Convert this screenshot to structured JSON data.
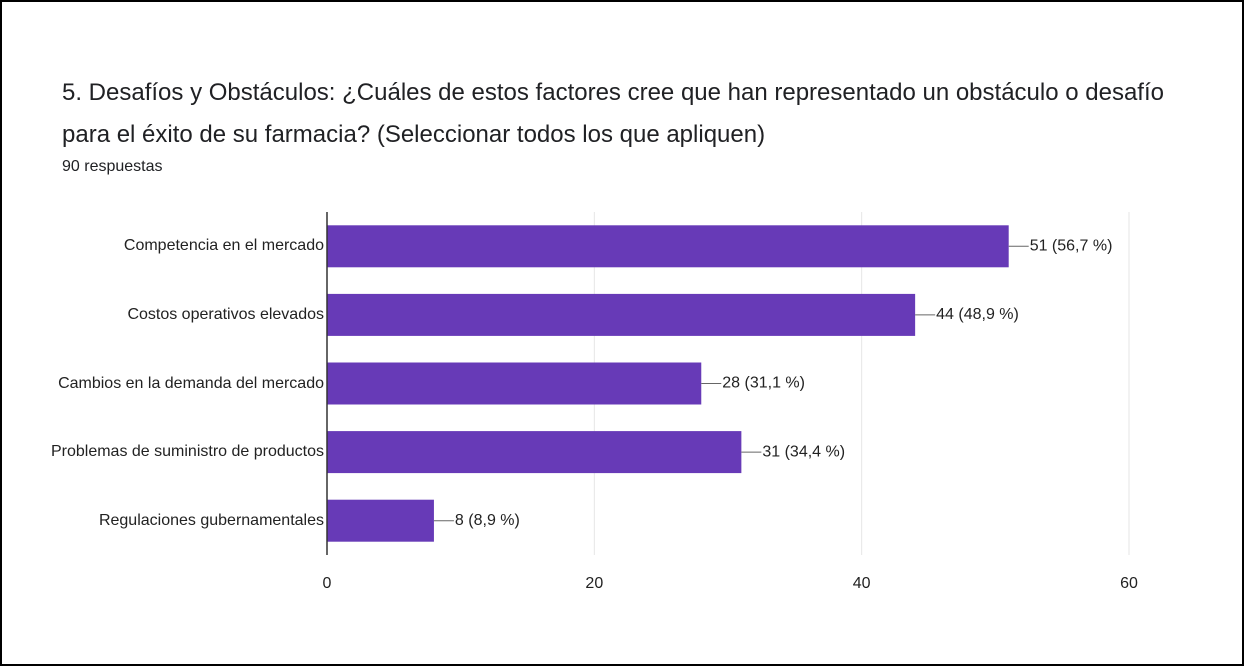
{
  "chart_data": {
    "type": "bar",
    "orientation": "horizontal",
    "title": "5. Desafíos y Obstáculos:  ¿Cuáles de estos factores cree que han representado un obstáculo o desafío para el éxito de su farmacia? (Seleccionar todos los que apliquen)",
    "subtitle": "90 respuestas",
    "categories": [
      "Competencia en el mercado",
      "Costos operativos elevados",
      "Cambios en la demanda del mercado",
      "Problemas de suministro de productos",
      "Regulaciones gubernamentales"
    ],
    "values": [
      51,
      44,
      28,
      31,
      8
    ],
    "value_labels": [
      "51 (56,7 %)",
      "44 (48,9 %)",
      "28 (31,1 %)",
      "31 (34,4 %)",
      "8 (8,9 %)"
    ],
    "color": "#673ab7",
    "xlim": [
      0,
      60
    ],
    "xticks": [
      0,
      20,
      40,
      60
    ],
    "grid": true
  }
}
